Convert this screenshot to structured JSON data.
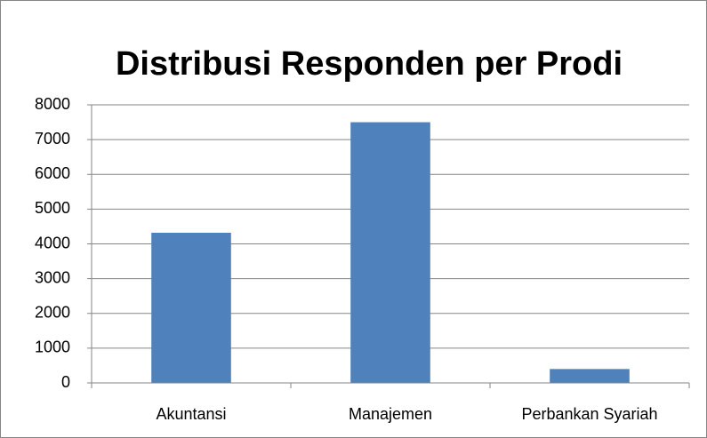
{
  "chart_data": {
    "type": "bar",
    "title": "Distribusi Responden per Prodi",
    "categories": [
      "Akuntansi",
      "Manajemen",
      "Perbankan Syariah"
    ],
    "values": [
      4320,
      7500,
      400
    ],
    "color": "#4f81bd",
    "ylim": [
      0,
      8000
    ],
    "yticks": [
      0,
      1000,
      2000,
      3000,
      4000,
      5000,
      6000,
      7000,
      8000
    ],
    "grid": true
  }
}
